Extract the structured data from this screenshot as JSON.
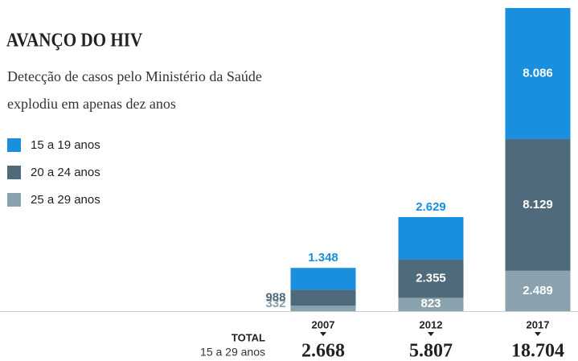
{
  "chart_data": {
    "type": "stacked_bar",
    "title": "AVANÇO DO HIV",
    "subtitle": [
      "Detecção de casos pelo Ministério da Saúde",
      "explodiu em apenas dez anos"
    ],
    "categories": [
      "2007",
      "2012",
      "2017"
    ],
    "series": [
      {
        "name": "15 a 19 anos",
        "color": "#1a8fde",
        "values": [
          1348,
          2629,
          8086
        ],
        "value_labels": [
          "1.348",
          "2.629",
          "8.086"
        ]
      },
      {
        "name": "20 a 24 anos",
        "color": "#4e6a7b",
        "values": [
          988,
          2355,
          8129
        ],
        "value_labels": [
          "988",
          "2.355",
          "8.129"
        ]
      },
      {
        "name": "25 a 29 anos",
        "color": "#8aa2ae",
        "values": [
          332,
          823,
          2489
        ],
        "value_labels": [
          "332",
          "823",
          "2.489"
        ]
      }
    ],
    "totals": {
      "label": "TOTAL",
      "sublabel": "15 a 29 anos",
      "values": [
        2668,
        5807,
        18704
      ],
      "value_labels": [
        "2.668",
        "5.807",
        "18.704"
      ]
    },
    "ylim": [
      0,
      19000
    ]
  }
}
